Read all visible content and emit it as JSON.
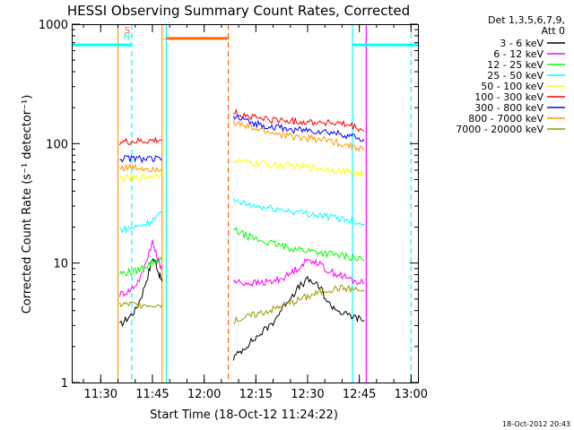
{
  "chart_data": {
    "type": "line",
    "title": "HESSI Observing Summary Count Rates, Corrected",
    "xlabel": "Start Time (18-Oct-12 11:24:22)",
    "ylabel": "Corrected Count Rate (s⁻¹ detector⁻¹)",
    "y_scale": "log",
    "ylim": [
      1,
      1000
    ],
    "y_ticks": [
      {
        "value": 1,
        "label": "1"
      },
      {
        "value": 10,
        "label": "10"
      },
      {
        "value": 100,
        "label": "100"
      },
      {
        "value": 1000,
        "label": "1000"
      }
    ],
    "xlim_min": [
      21.6,
      122.0
    ],
    "x_ticks": [
      {
        "value": 30,
        "label": "11:30"
      },
      {
        "value": 45,
        "label": "11:45"
      },
      {
        "value": 60,
        "label": "12:00"
      },
      {
        "value": 75,
        "label": "12:15"
      },
      {
        "value": 90,
        "label": "12:30"
      },
      {
        "value": 105,
        "label": "12:45"
      },
      {
        "value": 120,
        "label": "13:00"
      }
    ],
    "legend_header": [
      "Det 1,3,5,6,7,9,",
      "Att 0"
    ],
    "legend_position": "right",
    "footer_date": "18-Oct-2012 20:43",
    "segments": [
      {
        "start_min": 35.0,
        "end_min": 48.0
      },
      {
        "start_min": 68.0,
        "end_min": 107.0
      }
    ],
    "series": [
      {
        "name": "3 - 6 keV",
        "color": "#000000",
        "seg1": [
          [
            35.5,
            3.0
          ],
          [
            38,
            3.5
          ],
          [
            40,
            4.0
          ],
          [
            42,
            5.5
          ],
          [
            44,
            8.5
          ],
          [
            45,
            11
          ],
          [
            46,
            10
          ],
          [
            47,
            8
          ],
          [
            47.8,
            7
          ]
        ],
        "seg2": [
          [
            68.5,
            1.6
          ],
          [
            72,
            2.0
          ],
          [
            76,
            2.5
          ],
          [
            80,
            3.2
          ],
          [
            84,
            4.8
          ],
          [
            88,
            6.5
          ],
          [
            90,
            7.2
          ],
          [
            92,
            6.8
          ],
          [
            94,
            6.0
          ],
          [
            96,
            4.6
          ],
          [
            100,
            3.8
          ],
          [
            104,
            3.5
          ],
          [
            106.5,
            3.3
          ]
        ]
      },
      {
        "name": "6 - 12 keV",
        "color": "#ff00ff",
        "seg1": [
          [
            35.5,
            5.5
          ],
          [
            38,
            5.8
          ],
          [
            40,
            6.5
          ],
          [
            42,
            8.0
          ],
          [
            44,
            12.5
          ],
          [
            45,
            15
          ],
          [
            46,
            12
          ],
          [
            47,
            10
          ],
          [
            47.8,
            9
          ]
        ],
        "seg2": [
          [
            68.5,
            7.0
          ],
          [
            72,
            6.8
          ],
          [
            76,
            6.8
          ],
          [
            80,
            7.0
          ],
          [
            84,
            7.8
          ],
          [
            88,
            9.5
          ],
          [
            90,
            10.5
          ],
          [
            92,
            10.5
          ],
          [
            94,
            9.5
          ],
          [
            96,
            8.6
          ],
          [
            100,
            7.8
          ],
          [
            104,
            7.0
          ],
          [
            106.5,
            6.8
          ]
        ]
      },
      {
        "name": "12 - 25 keV",
        "color": "#00ff00",
        "seg1": [
          [
            35.5,
            8.2
          ],
          [
            40,
            8.5
          ],
          [
            44,
            9.8
          ],
          [
            46,
            10.5
          ],
          [
            47.8,
            10.5
          ]
        ],
        "seg2": [
          [
            68.5,
            19
          ],
          [
            72,
            17
          ],
          [
            76,
            15.5
          ],
          [
            80,
            14.5
          ],
          [
            84,
            13.5
          ],
          [
            88,
            13.0
          ],
          [
            92,
            12.5
          ],
          [
            96,
            12.0
          ],
          [
            100,
            11.5
          ],
          [
            104,
            11.0
          ],
          [
            106.5,
            10.5
          ]
        ]
      },
      {
        "name": "25 - 50 keV",
        "color": "#00ffff",
        "seg1": [
          [
            35.5,
            19
          ],
          [
            40,
            20
          ],
          [
            44,
            22
          ],
          [
            46,
            24
          ],
          [
            47.8,
            26
          ]
        ],
        "seg2": [
          [
            68.5,
            33
          ],
          [
            72,
            31
          ],
          [
            76,
            29.5
          ],
          [
            80,
            28.5
          ],
          [
            84,
            27.5
          ],
          [
            88,
            26.5
          ],
          [
            92,
            25.5
          ],
          [
            96,
            24.5
          ],
          [
            100,
            23.5
          ],
          [
            104,
            22.5
          ],
          [
            106.5,
            21
          ]
        ]
      },
      {
        "name": "50 - 100 keV",
        "color": "#ffff00",
        "seg1": [
          [
            35.5,
            51
          ],
          [
            40,
            51
          ],
          [
            44,
            53
          ],
          [
            47.8,
            55
          ]
        ],
        "seg2": [
          [
            68.5,
            72
          ],
          [
            72,
            70
          ],
          [
            76,
            68
          ],
          [
            80,
            66
          ],
          [
            84,
            65
          ],
          [
            88,
            64
          ],
          [
            92,
            63
          ],
          [
            96,
            61
          ],
          [
            100,
            59
          ],
          [
            104,
            57
          ],
          [
            106.5,
            55
          ]
        ]
      },
      {
        "name": "100 - 300 keV",
        "color": "#ff0000",
        "seg1": [
          [
            35.5,
            103
          ],
          [
            40,
            104
          ],
          [
            44,
            105
          ],
          [
            47.8,
            107
          ]
        ],
        "seg2": [
          [
            68.5,
            182
          ],
          [
            72,
            172
          ],
          [
            76,
            163
          ],
          [
            80,
            158
          ],
          [
            84,
            155
          ],
          [
            88,
            153
          ],
          [
            92,
            152
          ],
          [
            96,
            150
          ],
          [
            100,
            145
          ],
          [
            104,
            136
          ],
          [
            106.5,
            127
          ]
        ]
      },
      {
        "name": "300 - 800 keV",
        "color": "#0000ff",
        "seg1": [
          [
            35.5,
            75
          ],
          [
            40,
            75
          ],
          [
            44,
            74
          ],
          [
            47.8,
            74
          ]
        ],
        "seg2": [
          [
            68.5,
            168
          ],
          [
            72,
            155
          ],
          [
            76,
            145
          ],
          [
            80,
            138
          ],
          [
            84,
            132
          ],
          [
            88,
            130
          ],
          [
            92,
            128
          ],
          [
            96,
            125
          ],
          [
            100,
            120
          ],
          [
            104,
            113
          ],
          [
            106.5,
            106
          ]
        ]
      },
      {
        "name": "800 - 7000 keV",
        "color": "#ff9900",
        "seg1": [
          [
            35.5,
            63
          ],
          [
            40,
            63
          ],
          [
            44,
            62
          ],
          [
            47.8,
            62
          ]
        ],
        "seg2": [
          [
            68.5,
            150
          ],
          [
            72,
            140
          ],
          [
            76,
            130
          ],
          [
            80,
            123
          ],
          [
            84,
            116
          ],
          [
            88,
            112
          ],
          [
            92,
            110
          ],
          [
            96,
            106
          ],
          [
            100,
            100
          ],
          [
            104,
            94
          ],
          [
            106.5,
            88
          ]
        ]
      },
      {
        "name": "7000 - 20000 keV",
        "color": "#999900",
        "seg1": [
          [
            35.5,
            4.5
          ],
          [
            40,
            4.5
          ],
          [
            44,
            4.5
          ],
          [
            47.8,
            4.5
          ]
        ],
        "seg2": [
          [
            68.5,
            3.3
          ],
          [
            72,
            3.5
          ],
          [
            76,
            3.8
          ],
          [
            80,
            4.1
          ],
          [
            84,
            4.5
          ],
          [
            88,
            5.0
          ],
          [
            92,
            5.5
          ],
          [
            96,
            6.0
          ],
          [
            100,
            6.2
          ],
          [
            104,
            6.0
          ],
          [
            106.5,
            5.8
          ]
        ]
      }
    ],
    "annotations": [
      {
        "label": "N",
        "color": "#00ffff",
        "value": 671,
        "x_min": 21.6,
        "x_max": 39.0
      },
      {
        "label": "",
        "color": "#00ffff",
        "value": 671,
        "x_min": 103.0,
        "x_max": 122.0
      },
      {
        "label": "S",
        "color": "#ff6600",
        "value": 760,
        "x_min": 49.0,
        "x_max": 67.0
      }
    ],
    "vertical_markers": [
      {
        "min": 39.0,
        "color": "#00ffff",
        "style": "dashed"
      },
      {
        "min": 49.0,
        "color": "#00ffff",
        "style": "solid"
      },
      {
        "min": 67.0,
        "color": "#ff6600",
        "style": "dashed"
      },
      {
        "min": 103.0,
        "color": "#00ffff",
        "style": "solid"
      },
      {
        "min": 120.0,
        "color": "#00ffff",
        "style": "dashed"
      },
      {
        "min": 35.0,
        "color": "#ff9900",
        "style": "solid"
      },
      {
        "min": 47.8,
        "color": "#ff9900",
        "style": "solid"
      },
      {
        "min": 107.0,
        "color": "#ff00ff",
        "style": "solid"
      }
    ]
  }
}
